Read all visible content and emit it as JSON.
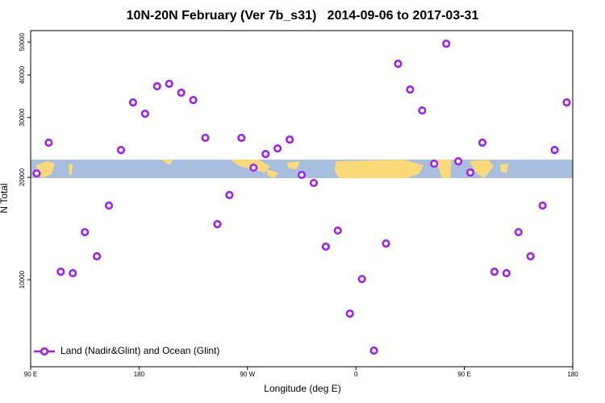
{
  "chart_data": {
    "type": "scatter",
    "title": "10N-20N February (Ver 7b_s31)   2014-09-06 to 2017-03-31",
    "x_label": "Longitude (deg E)",
    "y_label": "N Total",
    "xlim": [
      90,
      540
    ],
    "ylim": [
      5550,
      54000
    ],
    "ylog": true,
    "grid": false,
    "legend_position": "bottom-left",
    "xticks": [
      {
        "value": 90,
        "label": "90 E"
      },
      180,
      {
        "value": 270,
        "label": "90 W"
      },
      {
        "value": 360,
        "label": "0"
      },
      {
        "value": 450,
        "label": "90 E"
      },
      {
        "value": 540,
        "label": "180"
      }
    ],
    "yticks": [
      10000,
      20000,
      30000,
      40000,
      50000
    ],
    "series": [
      {
        "name": "Land (Nadir&Glint) and Ocean (Glint)",
        "color": "#a020f0",
        "x": [
          95,
          105,
          115,
          125,
          135,
          145,
          155,
          165,
          175,
          185,
          195,
          205,
          215,
          225,
          235,
          245,
          255,
          265,
          275,
          285,
          295,
          305,
          315,
          325,
          335,
          345,
          355,
          365,
          375,
          385,
          395,
          405,
          415,
          425,
          435,
          445,
          455,
          465,
          475,
          485,
          495,
          505,
          515,
          525,
          535
        ],
        "values": [
          20550,
          25290,
          10560,
          10450,
          13800,
          11720,
          16520,
          24070,
          33200,
          30770,
          37060,
          37670,
          35470,
          33750,
          26130,
          14570,
          17740,
          26130,
          21350,
          23420,
          24320,
          25840,
          20330,
          19250,
          12510,
          13950,
          7950,
          10050,
          6190,
          12780,
          43150,
          36230,
          31450,
          21940,
          49430,
          22300,
          20660,
          25290,
          10560,
          10450,
          13800,
          11720,
          16520,
          24070,
          33200
        ]
      }
    ]
  }
}
